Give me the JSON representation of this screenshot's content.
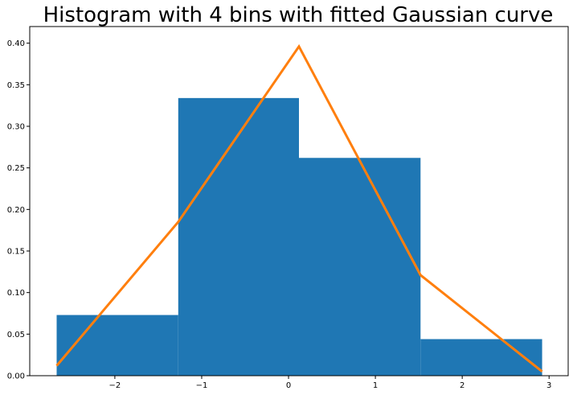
{
  "chart_data": {
    "type": "bar",
    "title": "Histogram with 4 bins with fitted Gaussian curve",
    "xlabel": "",
    "ylabel": "",
    "xlim": [
      -2.98,
      3.22
    ],
    "ylim": [
      0,
      0.42
    ],
    "grid": false,
    "bins": [
      {
        "left": -2.67,
        "right": -1.27,
        "value": 0.073
      },
      {
        "left": -1.27,
        "right": 0.12,
        "value": 0.334
      },
      {
        "left": 0.12,
        "right": 1.52,
        "value": 0.262
      },
      {
        "left": 1.52,
        "right": 2.92,
        "value": 0.044
      }
    ],
    "series": [
      {
        "type": "line",
        "x": [
          -2.67,
          -1.27,
          0.12,
          1.52,
          2.92
        ],
        "values": [
          0.012,
          0.185,
          0.396,
          0.121,
          0.005
        ]
      }
    ],
    "xticks": [
      -2,
      -1,
      0,
      1,
      2,
      3
    ],
    "xtick_labels": [
      "−2",
      "−1",
      "0",
      "1",
      "2",
      "3"
    ],
    "yticks": [
      0,
      0.05,
      0.1,
      0.15,
      0.2,
      0.25,
      0.3,
      0.35,
      0.4
    ],
    "ytick_labels": [
      "0.00",
      "0.05",
      "0.10",
      "0.15",
      "0.20",
      "0.25",
      "0.30",
      "0.35",
      "0.40"
    ],
    "colors": {
      "bars": "#1f77b4",
      "curve": "#ff7f0e",
      "axes": "#000000"
    }
  }
}
